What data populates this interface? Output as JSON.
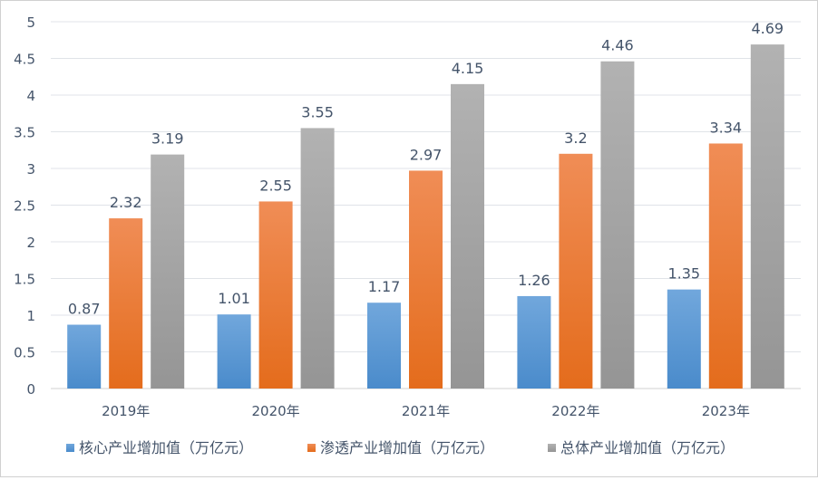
{
  "chart_data": {
    "type": "bar",
    "categories": [
      "2019年",
      "2020年",
      "2021年",
      "2022年",
      "2023年"
    ],
    "series": [
      {
        "name": "核心产业增加值（万亿元）",
        "values": [
          0.87,
          1.01,
          1.17,
          1.26,
          1.35
        ],
        "color": "#5b9bd5"
      },
      {
        "name": "渗透产业增加值（万亿元）",
        "values": [
          2.32,
          2.55,
          2.97,
          3.2,
          3.34
        ],
        "color": "#ed7d31"
      },
      {
        "name": "总体产业增加值（万亿元）",
        "values": [
          3.19,
          3.55,
          4.15,
          4.46,
          4.69
        ],
        "color": "#a5a5a5"
      }
    ],
    "data_labels": [
      [
        "0.87",
        "1.01",
        "1.17",
        "1.26",
        "1.35"
      ],
      [
        "2.32",
        "2.55",
        "2.97",
        "3.2",
        "3.34"
      ],
      [
        "3.19",
        "3.55",
        "4.15",
        "4.46",
        "4.69"
      ]
    ],
    "yticks": [
      "0",
      "0.5",
      "1",
      "1.5",
      "2",
      "2.5",
      "3",
      "3.5",
      "4",
      "4.5",
      "5"
    ],
    "ylim": [
      0,
      5
    ],
    "grid": true,
    "legend": "bottom",
    "title": "",
    "xlabel": "",
    "ylabel": ""
  }
}
